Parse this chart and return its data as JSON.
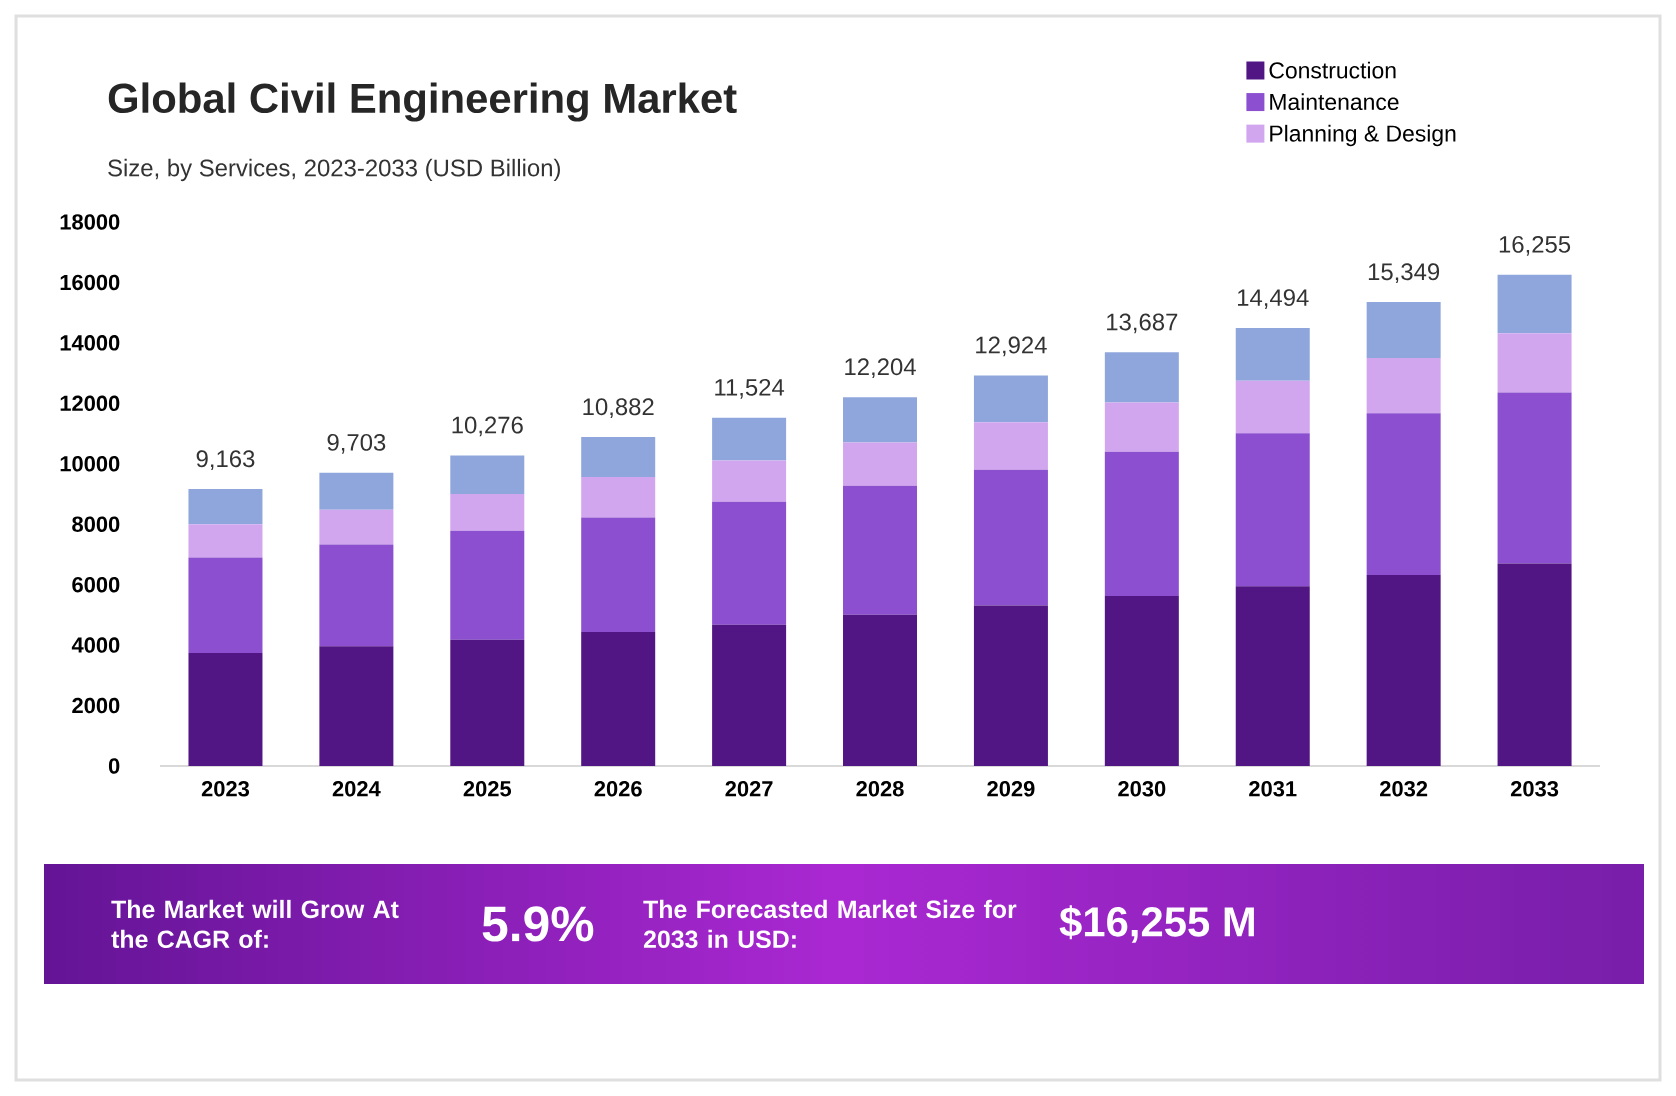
{
  "chart_data": {
    "type": "bar",
    "title": "Global Civil Engineering Market",
    "subtitle": "Size, by Services, 2023-2033 (USD Billion)",
    "categories": [
      "2023",
      "2024",
      "2025",
      "2026",
      "2027",
      "2028",
      "2029",
      "2030",
      "2031",
      "2032",
      "2033"
    ],
    "stacked": true,
    "series": [
      {
        "name": "Construction",
        "color": "#511584",
        "values": [
          3740,
          3960,
          4180,
          4430,
          4670,
          5000,
          5310,
          5620,
          5950,
          6320,
          6700
        ]
      },
      {
        "name": "Maintenance",
        "color": "#8b4fd0",
        "values": [
          3160,
          3370,
          3600,
          3790,
          4070,
          4270,
          4490,
          4780,
          5060,
          5350,
          5660
        ]
      },
      {
        "name": "Planning & Design",
        "color": "#d1a6ef",
        "values": [
          1100,
          1150,
          1220,
          1340,
          1370,
          1430,
          1570,
          1630,
          1740,
          1830,
          1960
        ]
      },
      {
        "color": "#8fa6dc",
        "values": [
          1163,
          1223,
          1276,
          1322,
          1414,
          1504,
          1554,
          1657,
          1744,
          1849,
          1935
        ]
      }
    ],
    "totals": [
      "9,163",
      "9,703",
      "10,276",
      "10,882",
      "11,524",
      "12,204",
      "12,924",
      "13,687",
      "14,494",
      "15,349",
      "16,255"
    ],
    "ylim": [
      0,
      18000
    ],
    "yticks": [
      0,
      2000,
      4000,
      6000,
      8000,
      10000,
      12000,
      14000,
      16000,
      18000
    ],
    "legend": "top right",
    "annotations": [
      "The Market will Grow At the CAGR of:",
      "5.9%",
      "The Forecasted Market Size for 2033 in USD:",
      "$16,255 M"
    ]
  }
}
